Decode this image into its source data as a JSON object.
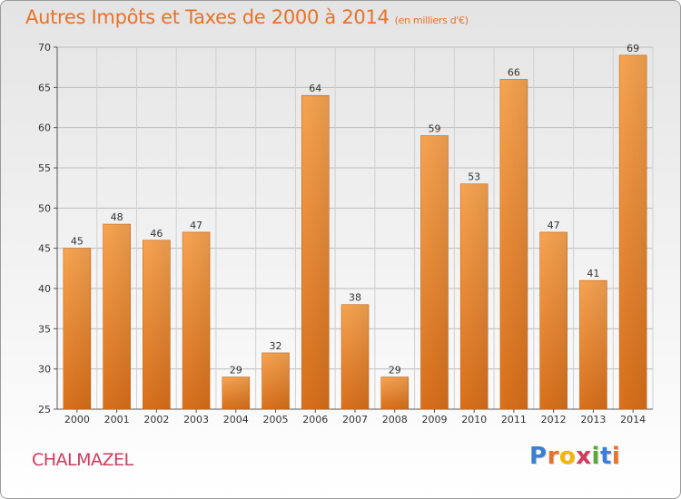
{
  "header": {
    "title": "Autres Impôts et Taxes de 2000 à 2014",
    "unit": "(en milliers d'€)"
  },
  "commune": "CHALMAZEL",
  "logo": {
    "letters": [
      "P",
      "r",
      "o",
      "x",
      "i",
      "t",
      "i"
    ],
    "colors": [
      "#3a7fd5",
      "#e8722a",
      "#f2b705",
      "#d03b5c",
      "#5aaa3a",
      "#3a7fd5",
      "#e8722a"
    ]
  },
  "chart_data": {
    "type": "bar",
    "title": "Autres Impôts et Taxes de 2000 à 2014",
    "categories": [
      "2000",
      "2001",
      "2002",
      "2003",
      "2004",
      "2005",
      "2006",
      "2007",
      "2008",
      "2009",
      "2010",
      "2011",
      "2012",
      "2013",
      "2014"
    ],
    "values": [
      45,
      48,
      46,
      47,
      29,
      32,
      64,
      38,
      29,
      59,
      53,
      66,
      47,
      41,
      69
    ],
    "ylim": [
      25,
      70
    ],
    "yticks": [
      "25",
      "30",
      "35",
      "40",
      "45",
      "50",
      "55",
      "60",
      "65",
      "70"
    ],
    "grid": true,
    "bar_color": "#f28c35"
  }
}
